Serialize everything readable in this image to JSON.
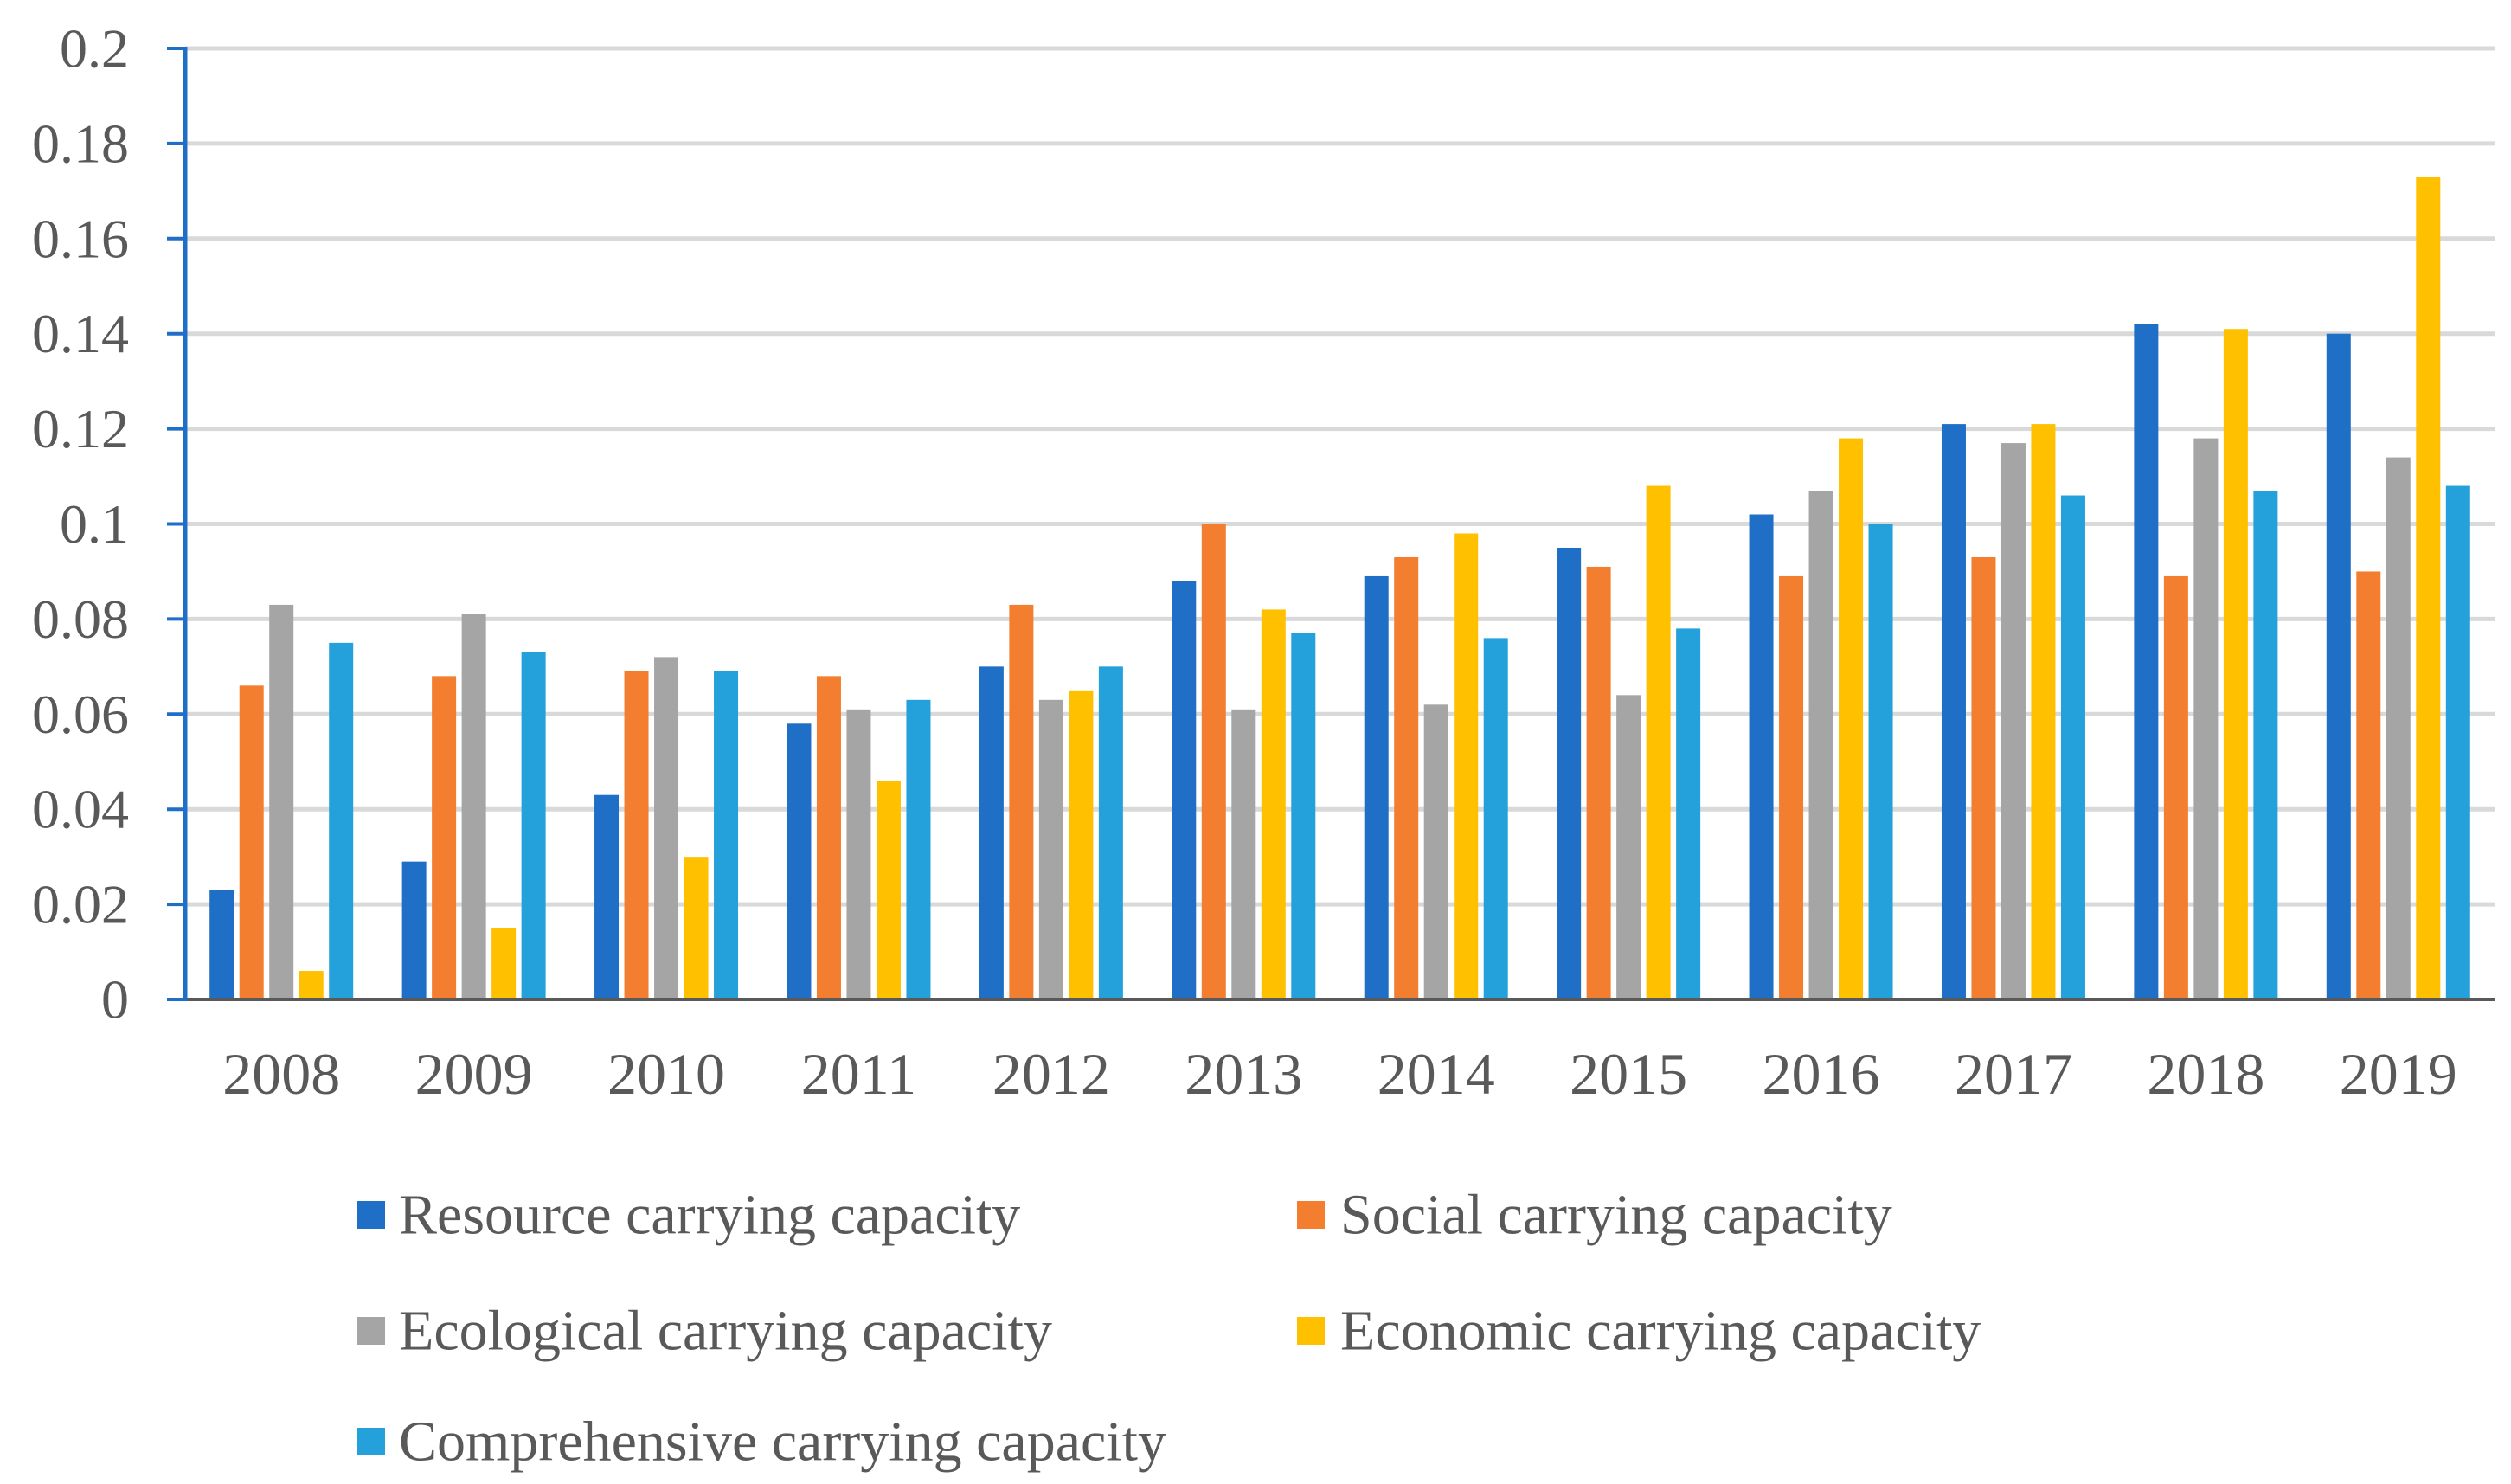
{
  "chart_data": {
    "type": "bar",
    "title": "",
    "xlabel": "",
    "ylabel": "",
    "ylim": [
      0,
      0.2
    ],
    "grid": true,
    "legend_position": "bottom",
    "categories": [
      "2008",
      "2009",
      "2010",
      "2011",
      "2012",
      "2013",
      "2014",
      "2015",
      "2016",
      "2017",
      "2018",
      "2019"
    ],
    "yticks": [
      "0",
      "0.02",
      "0.04",
      "0.06",
      "0.08",
      "0.1",
      "0.12",
      "0.14",
      "0.16",
      "0.18",
      "0.2"
    ],
    "series": [
      {
        "name": "Resource carrying capacity",
        "color": "#1F6FC6",
        "values": [
          0.023,
          0.029,
          0.043,
          0.058,
          0.07,
          0.088,
          0.089,
          0.095,
          0.102,
          0.121,
          0.142,
          0.14
        ]
      },
      {
        "name": "Social carrying capacity",
        "color": "#F47E30",
        "values": [
          0.066,
          0.068,
          0.069,
          0.068,
          0.083,
          0.1,
          0.093,
          0.091,
          0.089,
          0.093,
          0.089,
          0.09
        ]
      },
      {
        "name": "Ecological carrying capacity",
        "color": "#A5A5A5",
        "values": [
          0.083,
          0.081,
          0.072,
          0.061,
          0.063,
          0.061,
          0.062,
          0.064,
          0.107,
          0.117,
          0.118,
          0.114
        ]
      },
      {
        "name": "Economic carrying capacity",
        "color": "#FFC000",
        "values": [
          0.006,
          0.015,
          0.03,
          0.046,
          0.065,
          0.082,
          0.098,
          0.108,
          0.118,
          0.121,
          0.141,
          0.173
        ]
      },
      {
        "name": "Comprehensive carrying capacity",
        "color": "#24A0DA",
        "values": [
          0.075,
          0.073,
          0.069,
          0.063,
          0.07,
          0.077,
          0.076,
          0.078,
          0.1,
          0.106,
          0.107,
          0.108
        ]
      }
    ]
  }
}
